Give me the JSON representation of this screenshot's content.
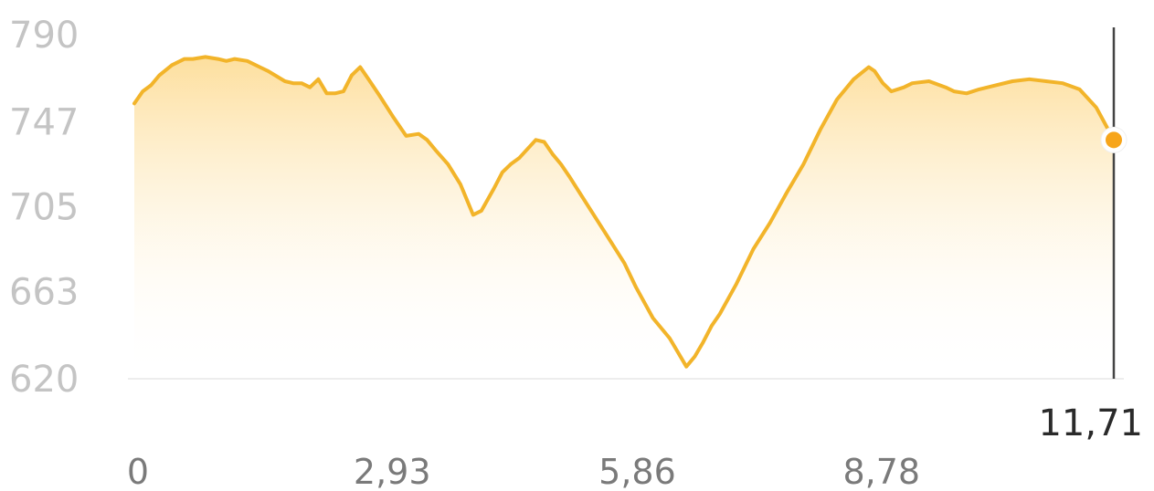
{
  "chart_data": {
    "type": "area",
    "y_ticks": [
      "790",
      "747",
      "705",
      "663",
      "620"
    ],
    "y_tick_values": [
      790,
      747,
      705,
      663,
      620
    ],
    "x_ticks": [
      "0",
      "2,93",
      "5,86",
      "8,78"
    ],
    "x_tick_values": [
      0,
      2.93,
      5.86,
      8.78
    ],
    "xlim": [
      0,
      11.71
    ],
    "ylim": [
      620,
      790
    ],
    "cursor": {
      "label": "11,71",
      "x": 11.71,
      "y": 738
    },
    "colors": {
      "line": "#f2b42a",
      "fill_top": "#fddd98",
      "marker": "#f7a51a",
      "cursor_line": "#444444",
      "baseline": "#ededed"
    },
    "series": [
      {
        "x": [
          0,
          0.1,
          0.2,
          0.3,
          0.45,
          0.6,
          0.7,
          0.85,
          1.0,
          1.1,
          1.2,
          1.35,
          1.5,
          1.6,
          1.8,
          1.9,
          2.0,
          2.1,
          2.2,
          2.3,
          2.4,
          2.5,
          2.6,
          2.7,
          2.8,
          2.93,
          3.1,
          3.25,
          3.4,
          3.5,
          3.6,
          3.75,
          3.9,
          4.05,
          4.15,
          4.3,
          4.4,
          4.5,
          4.6,
          4.8,
          4.9,
          5.0,
          5.1,
          5.2,
          5.4,
          5.6,
          5.86,
          6.0,
          6.2,
          6.4,
          6.6,
          6.7,
          6.8,
          6.85,
          6.9,
          7.0,
          7.2,
          7.4,
          7.6,
          7.8,
          8.0,
          8.2,
          8.4,
          8.6,
          8.78,
          8.85,
          8.95,
          9.05,
          9.2,
          9.3,
          9.5,
          9.7,
          9.8,
          9.95,
          10.1,
          10.2,
          10.3,
          10.5,
          10.7,
          10.9,
          11.1,
          11.3,
          11.5,
          11.71
        ],
        "y": [
          756,
          762,
          765,
          770,
          775,
          778,
          778,
          779,
          778,
          777,
          778,
          777,
          774,
          772,
          767,
          766,
          766,
          764,
          768,
          761,
          761,
          762,
          770,
          774,
          768,
          760,
          749,
          740,
          741,
          738,
          733,
          726,
          716,
          701,
          703,
          714,
          722,
          726,
          729,
          738,
          737,
          731,
          726,
          720,
          707,
          694,
          677,
          665,
          650,
          640,
          626,
          631,
          638,
          642,
          646,
          652,
          667,
          684,
          697,
          712,
          726,
          743,
          758,
          768,
          774,
          772,
          766,
          762,
          764,
          766,
          767,
          764,
          762,
          761,
          763,
          764,
          765,
          767,
          768,
          767,
          766,
          763,
          754,
          738
        ]
      }
    ]
  }
}
